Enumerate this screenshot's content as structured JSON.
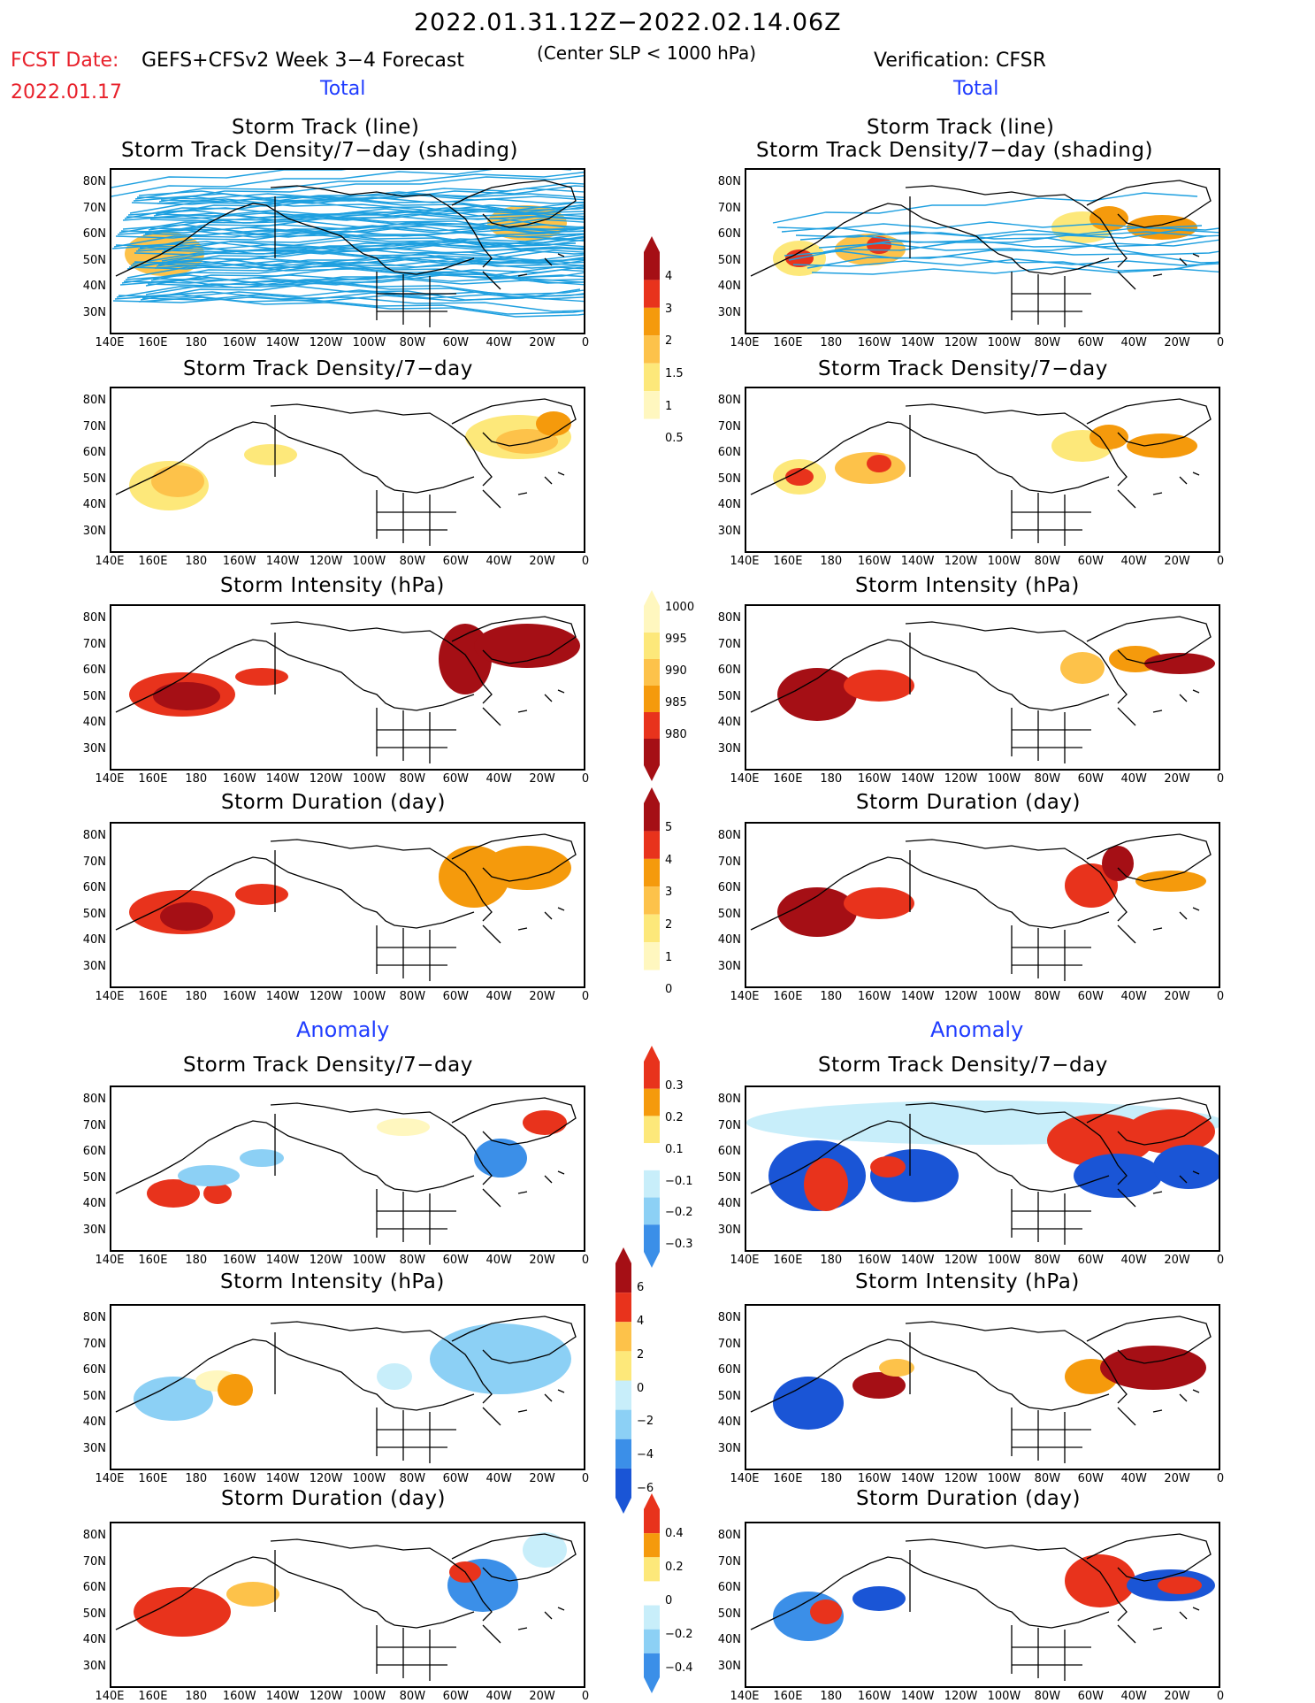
{
  "header": {
    "date_range": "2022.01.31.12Z−2022.02.14.06Z",
    "center_slp": "(Center SLP < 1000 hPa)",
    "fcst_label": "FCST Date:",
    "fcst_date": "2022.01.17",
    "left_title": "GEFS+CFSv2 Week 3−4 Forecast",
    "right_title": "Verification: CFSR",
    "total_left": "Total",
    "total_right": "Total",
    "anomaly_left": "Anomaly",
    "anomaly_right": "Anomaly"
  },
  "panels": {
    "p1_line1": "Storm Track (line)",
    "p1_line2": "Storm Track Density/7−day (shading)",
    "p2": "Storm Track Density/7−day",
    "p3": "Storm Intensity (hPa)",
    "p4": "Storm Duration (day)",
    "p5": "Storm Track Density/7−day",
    "p6": "Storm Intensity (hPa)",
    "p7": "Storm Duration (day)"
  },
  "axes": {
    "lat_labels": [
      "80N",
      "70N",
      "60N",
      "50N",
      "40N",
      "30N"
    ],
    "lon_labels": [
      "140E",
      "160E",
      "180",
      "160W",
      "140W",
      "120W",
      "100W",
      "80W",
      "60W",
      "40W",
      "20W",
      "0"
    ]
  },
  "colorbars": {
    "density_total": [
      "4",
      "3",
      "2",
      "1.5",
      "1",
      "0.5"
    ],
    "intensity_total": [
      "1000",
      "995",
      "990",
      "985",
      "980"
    ],
    "duration_total": [
      "5",
      "4",
      "3",
      "2",
      "1",
      "0"
    ],
    "density_anom": [
      "0.3",
      "0.2",
      "0.1",
      "−0.1",
      "−0.2",
      "−0.3"
    ],
    "intensity_anom": [
      "6",
      "4",
      "2",
      "0",
      "−2",
      "−4",
      "−6"
    ],
    "duration_anom": [
      "0.4",
      "0.2",
      "0",
      "−0.2",
      "−0.4"
    ]
  },
  "colors": {
    "track_line": "#1fa0e0",
    "dark_red": "#a50f15",
    "red": "#e8331c",
    "orange": "#f59a0c",
    "light_orange": "#fdc24a",
    "yellow": "#fde87a",
    "pale_yellow": "#fff7bf",
    "pale_blue": "#c8eefa",
    "light_blue": "#8cd0f5",
    "mid_blue": "#3b8fe8",
    "dark_blue": "#1a55d6"
  }
}
